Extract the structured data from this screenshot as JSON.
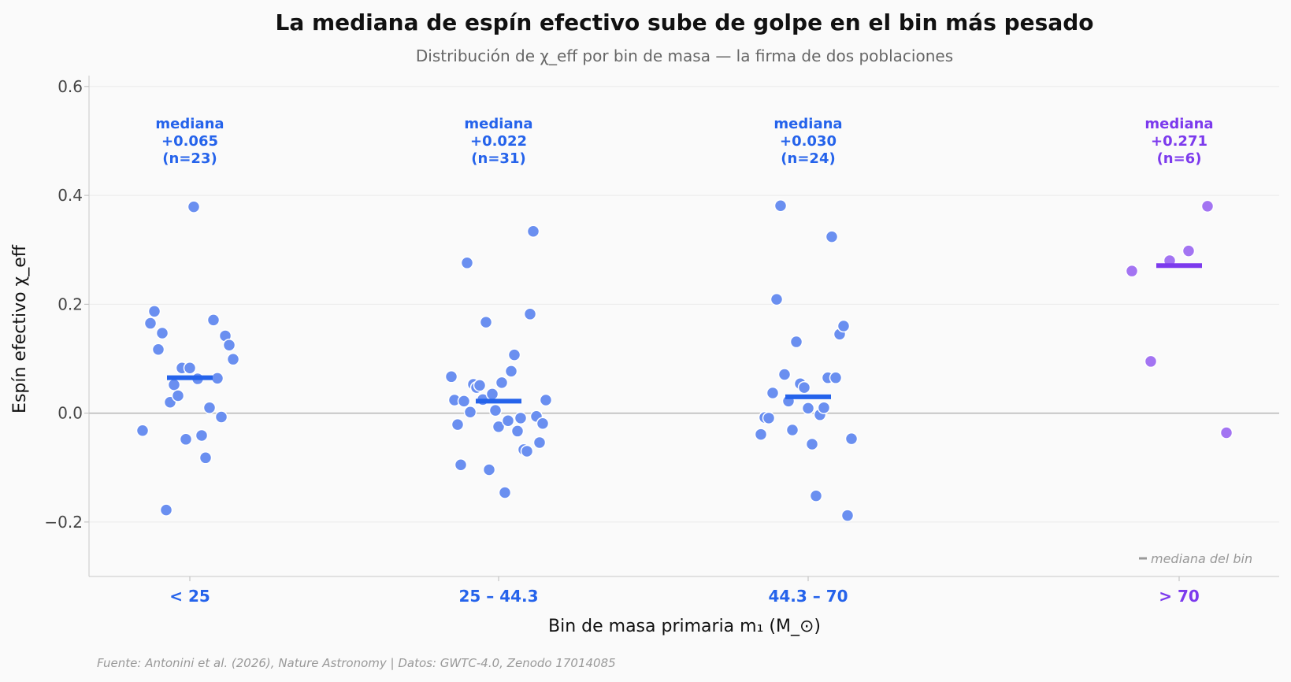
{
  "chart_data": {
    "type": "scatter",
    "title": "La mediana de espín efectivo sube de golpe en el bin más pesado",
    "subtitle": "Distribución de χ_eff por bin de masa — la firma de dos poblaciones",
    "xlabel": "Bin de masa primaria m₁ (M_⊙)",
    "ylabel": "Espín efectivo χ_eff",
    "ylim": [
      -0.3,
      0.62
    ],
    "yticks": [
      -0.2,
      0.0,
      0.2,
      0.4,
      0.6
    ],
    "ytick_labels": [
      "−0.2",
      "0.0",
      "0.2",
      "0.4",
      "0.6"
    ],
    "grid": true,
    "zero_line": true,
    "legend": {
      "placement": "bottom-right",
      "label": "mediana del bin"
    },
    "median_annotation_word": "mediana",
    "colors": {
      "low_mass": "#2563eb",
      "low_mass_points": "#6a8ff0",
      "high_mass": "#7c3aed",
      "high_mass_points": "#a374f2"
    },
    "categories": [
      {
        "label": "< 25",
        "color": "#2563eb",
        "point_color": "#6a8ff0",
        "median": 0.065,
        "median_label": "+0.065",
        "n": 23,
        "n_label": "(n=23)",
        "points": [
          [
            -0.6,
            -0.032
          ],
          [
            -0.5,
            0.165
          ],
          [
            -0.45,
            0.187
          ],
          [
            -0.4,
            0.117
          ],
          [
            -0.35,
            0.147
          ],
          [
            -0.3,
            -0.178
          ],
          [
            -0.25,
            0.02
          ],
          [
            -0.2,
            0.052
          ],
          [
            -0.15,
            0.032
          ],
          [
            -0.1,
            0.083
          ],
          [
            -0.05,
            -0.048
          ],
          [
            0.0,
            0.083
          ],
          [
            0.05,
            0.379
          ],
          [
            0.1,
            0.063
          ],
          [
            0.15,
            -0.041
          ],
          [
            0.2,
            -0.082
          ],
          [
            0.25,
            0.01
          ],
          [
            0.3,
            0.171
          ],
          [
            0.35,
            0.064
          ],
          [
            0.4,
            -0.007
          ],
          [
            0.45,
            0.142
          ],
          [
            0.5,
            0.125
          ],
          [
            0.55,
            0.099
          ]
        ]
      },
      {
        "label": "25 – 44.3",
        "color": "#2563eb",
        "point_color": "#6a8ff0",
        "median": 0.022,
        "median_label": "+0.022",
        "n": 31,
        "n_label": "(n=31)",
        "points": [
          [
            -0.6,
            0.067
          ],
          [
            -0.56,
            0.024
          ],
          [
            -0.52,
            -0.021
          ],
          [
            -0.48,
            -0.095
          ],
          [
            -0.44,
            0.022
          ],
          [
            -0.4,
            0.276
          ],
          [
            -0.36,
            0.002
          ],
          [
            -0.32,
            0.053
          ],
          [
            -0.28,
            0.047
          ],
          [
            -0.24,
            0.051
          ],
          [
            -0.2,
            0.025
          ],
          [
            -0.16,
            0.167
          ],
          [
            -0.12,
            -0.104
          ],
          [
            -0.08,
            0.035
          ],
          [
            -0.04,
            0.005
          ],
          [
            0.0,
            -0.025
          ],
          [
            0.04,
            0.056
          ],
          [
            0.08,
            -0.146
          ],
          [
            0.12,
            -0.014
          ],
          [
            0.16,
            0.077
          ],
          [
            0.2,
            0.107
          ],
          [
            0.24,
            -0.033
          ],
          [
            0.28,
            -0.009
          ],
          [
            0.32,
            -0.067
          ],
          [
            0.36,
            -0.07
          ],
          [
            0.4,
            0.182
          ],
          [
            0.44,
            0.334
          ],
          [
            0.48,
            -0.006
          ],
          [
            0.52,
            -0.054
          ],
          [
            0.56,
            -0.019
          ],
          [
            0.6,
            0.024
          ]
        ]
      },
      {
        "label": "44.3 – 70",
        "color": "#2563eb",
        "point_color": "#6a8ff0",
        "median": 0.03,
        "median_label": "+0.030",
        "n": 24,
        "n_label": "(n=24)",
        "points": [
          [
            -0.6,
            -0.039
          ],
          [
            -0.55,
            -0.008
          ],
          [
            -0.5,
            -0.009
          ],
          [
            -0.45,
            0.037
          ],
          [
            -0.4,
            0.209
          ],
          [
            -0.35,
            0.381
          ],
          [
            -0.3,
            0.071
          ],
          [
            -0.25,
            0.022
          ],
          [
            -0.2,
            -0.031
          ],
          [
            -0.15,
            0.131
          ],
          [
            -0.1,
            0.054
          ],
          [
            -0.05,
            0.047
          ],
          [
            0.0,
            0.009
          ],
          [
            0.05,
            -0.057
          ],
          [
            0.1,
            -0.152
          ],
          [
            0.15,
            -0.003
          ],
          [
            0.2,
            0.01
          ],
          [
            0.25,
            0.065
          ],
          [
            0.3,
            0.324
          ],
          [
            0.35,
            0.065
          ],
          [
            0.4,
            0.145
          ],
          [
            0.45,
            0.16
          ],
          [
            0.5,
            -0.188
          ],
          [
            0.55,
            -0.047
          ]
        ]
      },
      {
        "label": "> 70",
        "color": "#7c3aed",
        "point_color": "#a374f2",
        "median": 0.271,
        "median_label": "+0.271",
        "n": 6,
        "n_label": "(n=6)",
        "points": [
          [
            -0.6,
            0.261
          ],
          [
            -0.36,
            0.095
          ],
          [
            -0.12,
            0.28
          ],
          [
            0.12,
            0.298
          ],
          [
            0.36,
            0.38
          ],
          [
            0.6,
            -0.036
          ]
        ]
      }
    ]
  },
  "footer": {
    "source": "Fuente: Antonini et al. (2026), Nature Astronomy | Datos: GWTC-4.0, Zenodo 17014085"
  }
}
